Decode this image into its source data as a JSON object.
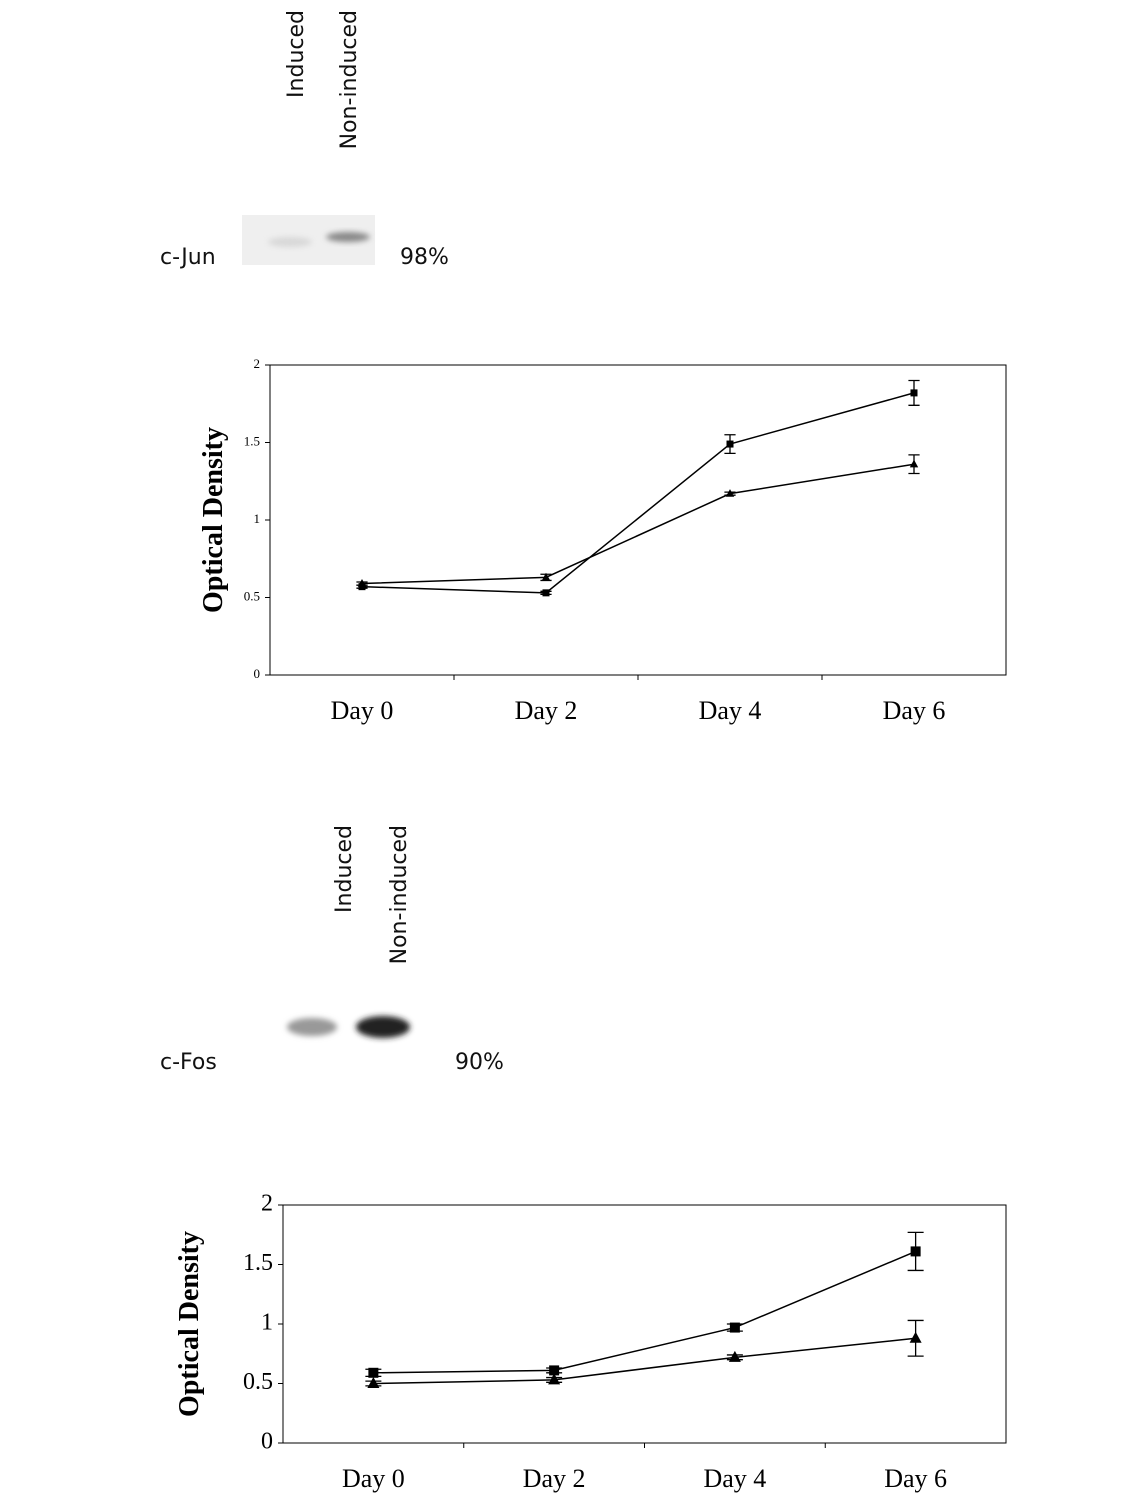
{
  "blots": [
    {
      "protein": "c-Jun",
      "lanes": [
        "Induced",
        "Non-induced"
      ],
      "percent": "98%"
    },
    {
      "protein": "c-Fos",
      "lanes": [
        "Induced",
        "Non-induced"
      ],
      "percent": "90%"
    }
  ],
  "chart_data": [
    {
      "type": "line",
      "y_label": "Optical Density",
      "categories": [
        "Day 0",
        "Day 2",
        "Day 4",
        "Day 6"
      ],
      "ylim": [
        0,
        2
      ],
      "yticks": [
        0,
        0.5,
        1,
        1.5,
        2
      ],
      "series": [
        {
          "marker": "square",
          "color": "#000000",
          "values": [
            0.57,
            0.53,
            1.49,
            1.82
          ],
          "errors": [
            0.01,
            0.01,
            0.06,
            0.08
          ]
        },
        {
          "marker": "triangle",
          "color": "#000000",
          "values": [
            0.59,
            0.63,
            1.17,
            1.36
          ],
          "errors": [
            0.01,
            0.02,
            0.01,
            0.06
          ]
        }
      ]
    },
    {
      "type": "line",
      "y_label": "Optical Density",
      "categories": [
        "Day 0",
        "Day 2",
        "Day 4",
        "Day 6"
      ],
      "ylim": [
        0,
        2
      ],
      "yticks": [
        0,
        0.5,
        1,
        1.5,
        2
      ],
      "series": [
        {
          "marker": "square",
          "color": "#000000",
          "values": [
            0.59,
            0.61,
            0.97,
            1.61
          ],
          "errors": [
            0.03,
            0.02,
            0.03,
            0.16
          ]
        },
        {
          "marker": "triangle",
          "color": "#000000",
          "values": [
            0.5,
            0.53,
            0.72,
            0.88
          ],
          "errors": [
            0.02,
            0.02,
            0.02,
            0.15
          ]
        }
      ]
    }
  ]
}
